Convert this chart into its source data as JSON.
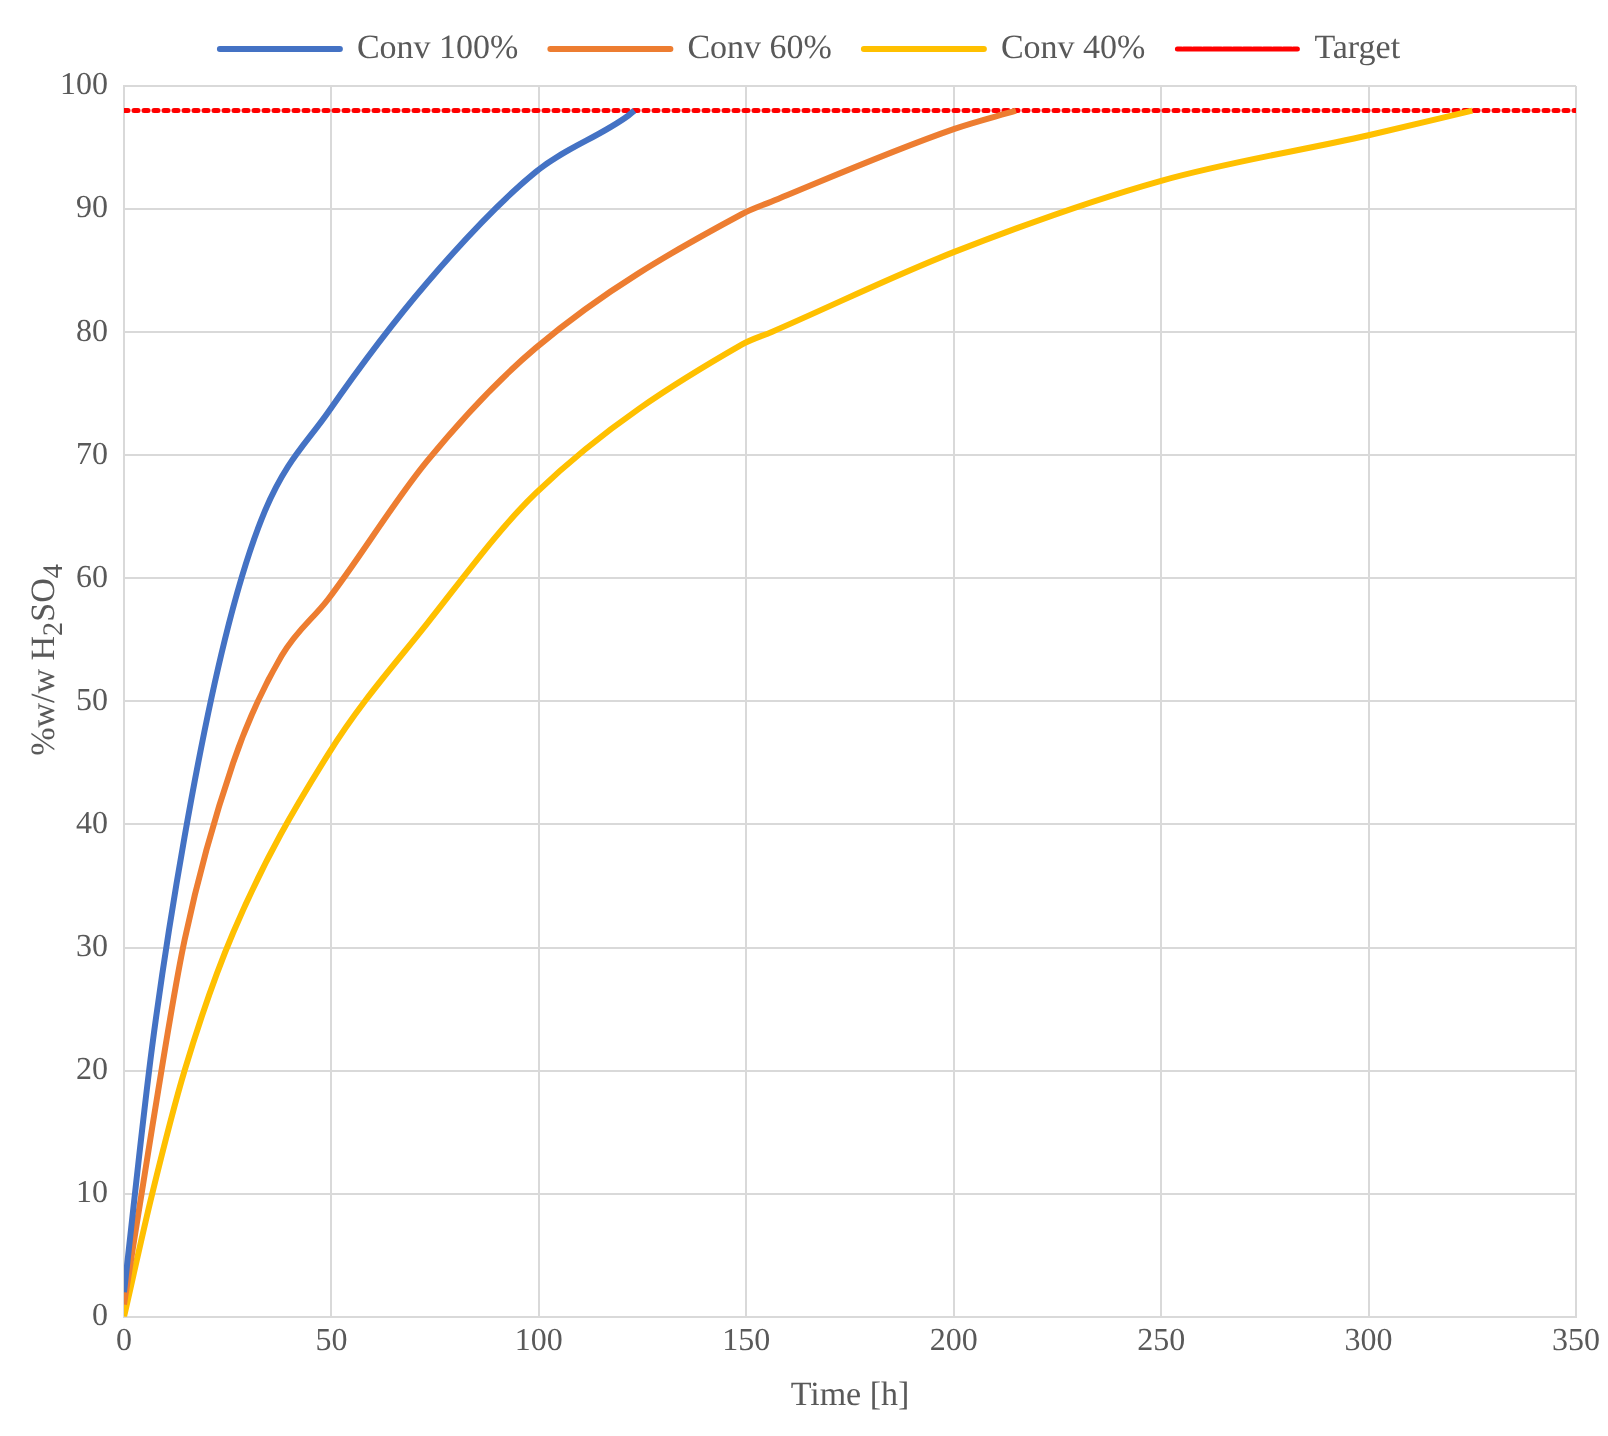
{
  "chart_data": {
    "type": "line",
    "xlabel": "Time [h]",
    "ylabel": "%w/w H$_{2}$SO$_{4}$",
    "xlim": [
      0,
      350
    ],
    "xticks": [
      0,
      50,
      100,
      150,
      200,
      250,
      300,
      350
    ],
    "ylim": [
      0,
      100
    ],
    "yticks": [
      0,
      10,
      20,
      30,
      40,
      50,
      60,
      70,
      80,
      90,
      100
    ],
    "grid": true,
    "legend": "top",
    "marker": "none",
    "line_style": "solid",
    "series": [
      {
        "name": "Conv 100%",
        "color": "#4472c4",
        "x": [
          0,
          6.8,
          14.6,
          24.3,
          34,
          49.2,
          73,
          99.2,
          121.6,
          123
        ],
        "values": [
          2,
          22,
          39,
          55,
          65.5,
          73.5,
          84,
          93,
          97.6,
          98
        ]
      },
      {
        "name": "Conv 60%",
        "color": "#ed7d31",
        "x": [
          0,
          6.8,
          14.6,
          26.3,
          38,
          49.2,
          73,
          99.2,
          149,
          156,
          200,
          215
        ],
        "values": [
          1,
          15.4,
          30.6,
          45,
          53.7,
          58.3,
          69.5,
          78.7,
          89.6,
          90.6,
          96.5,
          98
        ]
      },
      {
        "name": "Conv 40%",
        "color": "#ffc000",
        "x": [
          0,
          6.8,
          14.6,
          26.3,
          49.2,
          73,
          99.2,
          149,
          156,
          200,
          250,
          300,
          325
        ],
        "values": [
          0,
          10,
          20,
          31.2,
          45.7,
          56.3,
          66.9,
          79,
          80,
          86.5,
          92.3,
          96,
          98
        ]
      }
    ],
    "ref_lines": [
      {
        "axis": "y",
        "value": 98,
        "label": "Target",
        "color": "#ff0000",
        "line_style": "dotted"
      }
    ]
  }
}
